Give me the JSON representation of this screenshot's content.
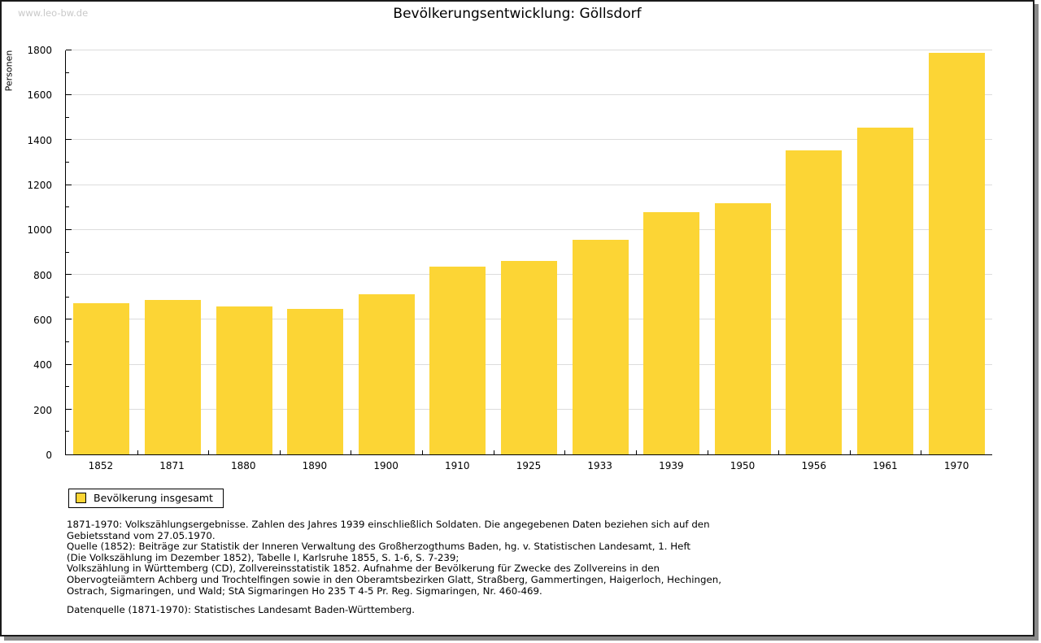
{
  "watermark": "www.leo-bw.de",
  "header": {
    "title": "Bevölkerungsentwicklung: Göllsdorf"
  },
  "chart_data": {
    "type": "bar",
    "title": "Bevölkerungsentwicklung: Göllsdorf",
    "xlabel": "",
    "ylabel": "Personen",
    "categories": [
      "1852",
      "1871",
      "1880",
      "1890",
      "1900",
      "1910",
      "1925",
      "1933",
      "1939",
      "1950",
      "1956",
      "1961",
      "1970"
    ],
    "values": [
      675,
      687,
      659,
      648,
      712,
      838,
      863,
      955,
      1080,
      1119,
      1355,
      1457,
      1790
    ],
    "ylim": [
      0,
      1800
    ],
    "ytick_major_step": 200,
    "ytick_minor_step": 100,
    "grid": true,
    "bar_color": "#FCD535",
    "gridline_color": "#dcdcdc",
    "legend_position": "bottom-left"
  },
  "legend": {
    "label": "Bevölkerung insgesamt"
  },
  "footnotes": [
    "1871-1970: Volkszählungsergebnisse. Zahlen des Jahres 1939 einschließlich Soldaten. Die angegebenen Daten beziehen sich auf den",
    "Gebietsstand vom 27.05.1970.",
    "Quelle (1852): Beiträge zur Statistik der Inneren Verwaltung des Großherzogthums Baden, hg. v. Statistischen Landesamt, 1. Heft",
    "(Die Volkszählung im Dezember 1852), Tabelle I, Karlsruhe 1855, S. 1-6, S. 7-239;",
    "Volkszählung in Württemberg (CD), Zollvereinsstatistik 1852. Aufnahme der Bevölkerung für Zwecke des Zollvereins in den",
    "Obervogteiämtern Achberg und Trochtelfingen sowie in den Oberamtsbezirken Glatt, Straßberg, Gammertingen, Haigerloch, Hechingen,",
    "Ostrach, Sigmaringen, und Wald; StA Sigmaringen Ho 235 T 4-5 Pr. Reg. Sigmaringen, Nr. 460-469."
  ],
  "datasource": "Datenquelle (1871-1970): Statistisches Landesamt Baden-Württemberg."
}
